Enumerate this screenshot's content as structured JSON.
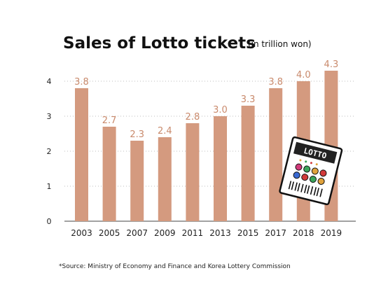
{
  "chart_data": {
    "type": "bar",
    "title": "Sales of Lotto tickets",
    "subtitle": "(in trillion won)",
    "categories": [
      "2003",
      "2005",
      "2007",
      "2009",
      "2011",
      "2013",
      "2015",
      "2017",
      "2018",
      "2019"
    ],
    "values": [
      3.8,
      2.7,
      2.3,
      2.4,
      2.8,
      3.0,
      3.3,
      3.8,
      4.0,
      4.3
    ],
    "value_labels": [
      "3.8",
      "2.7",
      "2.3",
      "2.4",
      "2.8",
      "3.0",
      "3.3",
      "3.8",
      "4.0",
      "4.3"
    ],
    "yticks": [
      "0",
      "1",
      "2",
      "3",
      "4"
    ],
    "ylim": [
      0,
      4.4
    ],
    "grid": true,
    "bar_color": "#d49a7f",
    "label_color": "#c98a6c",
    "xlabel": "",
    "ylabel": ""
  },
  "source": "*Source: Ministry of Economy and Finance and Korea Lottery Commission",
  "illustration": {
    "icon": "lotto-ticket-icon",
    "label": "LOTTO"
  }
}
